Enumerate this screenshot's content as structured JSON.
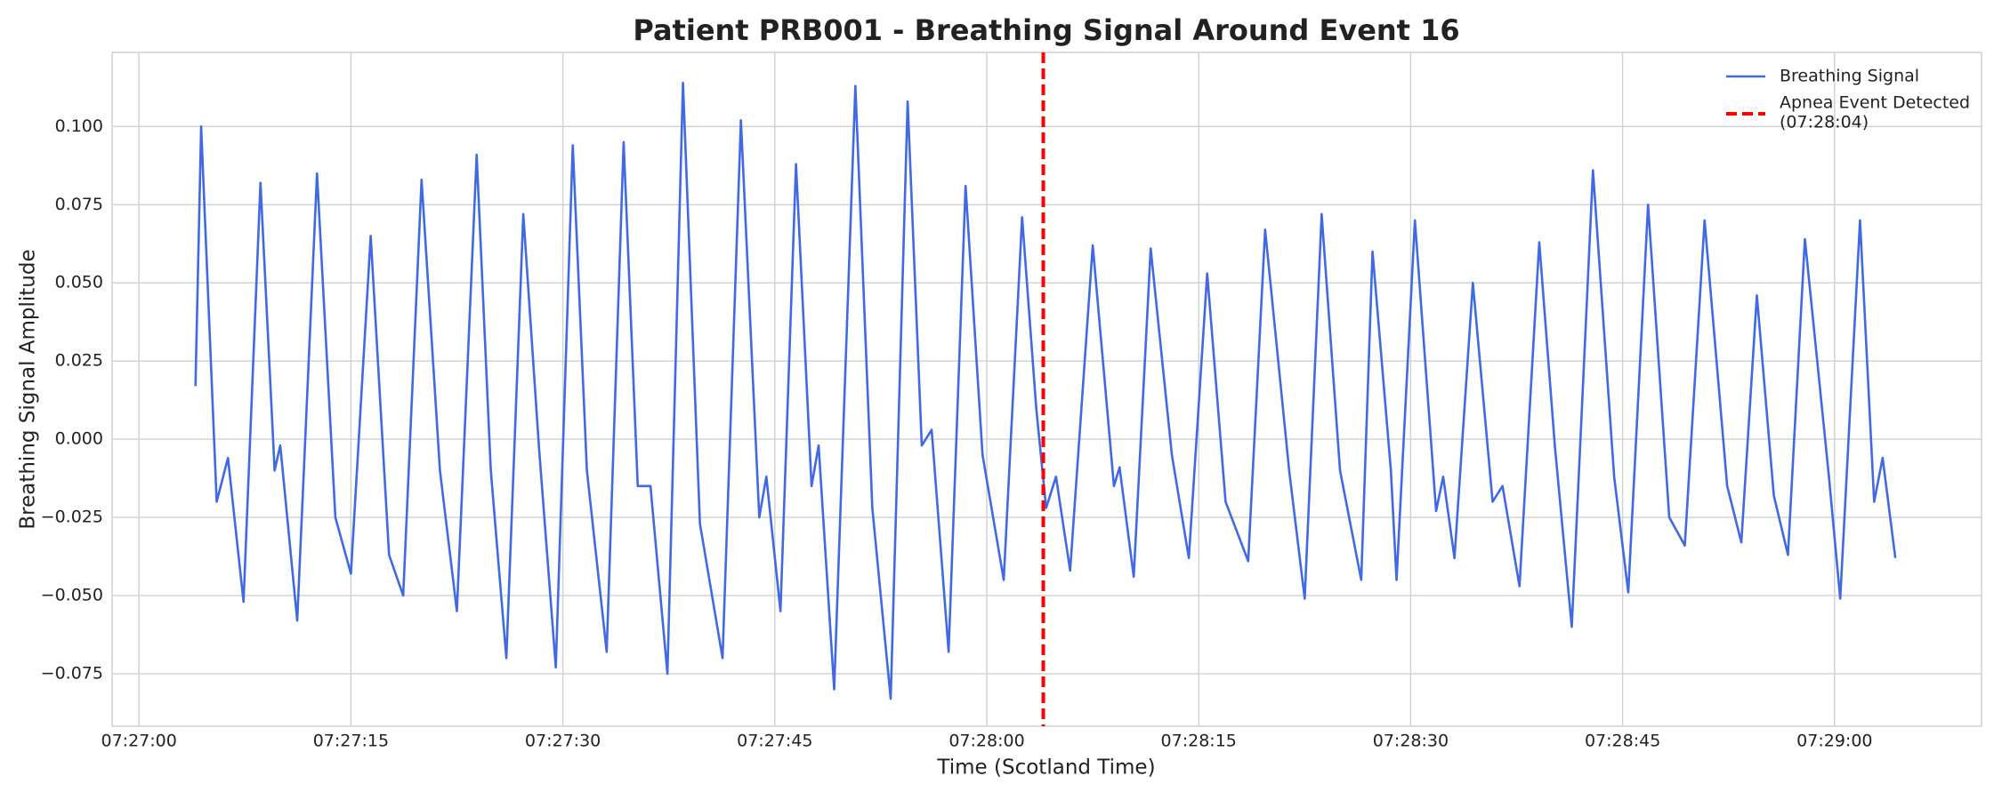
{
  "chart_data": {
    "type": "line",
    "title": "Patient PRB001 - Breathing Signal Around Event 16",
    "x_label": "Time (Scotland Time)",
    "y_label": "Breathing Signal Amplitude",
    "x": [
      4.0,
      4.4,
      5.5,
      6.3,
      7.4,
      8.6,
      9.6,
      10.0,
      11.2,
      12.6,
      13.9,
      15.0,
      16.4,
      17.7,
      18.7,
      20.0,
      21.3,
      22.5,
      23.9,
      24.9,
      26.0,
      27.2,
      28.3,
      29.5,
      30.7,
      31.7,
      33.1,
      34.3,
      35.3,
      36.2,
      37.4,
      38.5,
      39.7,
      41.3,
      42.6,
      43.9,
      44.4,
      45.4,
      46.5,
      47.6,
      48.1,
      49.2,
      50.7,
      51.9,
      53.2,
      54.4,
      55.4,
      56.1,
      57.3,
      58.5,
      59.7,
      61.2,
      62.5,
      63.5,
      64.2,
      64.9,
      65.9,
      67.5,
      69.0,
      69.4,
      70.4,
      71.6,
      73.1,
      74.3,
      75.6,
      76.9,
      78.5,
      79.7,
      81.4,
      82.5,
      83.7,
      85.0,
      86.5,
      87.3,
      88.6,
      89.0,
      90.3,
      91.8,
      92.3,
      93.1,
      94.4,
      95.8,
      96.5,
      97.7,
      99.1,
      100.2,
      101.4,
      102.9,
      104.4,
      105.4,
      106.8,
      108.3,
      109.4,
      110.8,
      112.4,
      113.4,
      114.5,
      115.7,
      116.7,
      117.9,
      119.6,
      120.4,
      121.8,
      122.8,
      123.4,
      124.3
    ],
    "series": [
      {
        "name": "Breathing Signal",
        "color": "#4169e1",
        "values": [
          0.017,
          0.1,
          -0.02,
          -0.006,
          -0.052,
          0.082,
          -0.01,
          -0.002,
          -0.058,
          0.085,
          -0.025,
          -0.043,
          0.065,
          -0.037,
          -0.05,
          0.083,
          -0.01,
          -0.055,
          0.091,
          -0.01,
          -0.07,
          0.072,
          -0.002,
          -0.073,
          0.094,
          -0.01,
          -0.068,
          0.095,
          -0.015,
          -0.015,
          -0.075,
          0.114,
          -0.027,
          -0.07,
          0.102,
          -0.025,
          -0.012,
          -0.055,
          0.088,
          -0.015,
          -0.002,
          -0.08,
          0.113,
          -0.022,
          -0.083,
          0.108,
          -0.002,
          0.003,
          -0.068,
          0.081,
          -0.005,
          -0.045,
          0.071,
          0.01,
          -0.022,
          -0.012,
          -0.042,
          0.062,
          -0.015,
          -0.009,
          -0.044,
          0.061,
          -0.005,
          -0.038,
          0.053,
          -0.02,
          -0.039,
          0.067,
          -0.01,
          -0.051,
          0.072,
          -0.01,
          -0.045,
          0.06,
          -0.01,
          -0.045,
          0.07,
          -0.023,
          -0.012,
          -0.038,
          0.05,
          -0.02,
          -0.015,
          -0.047,
          0.063,
          -0.002,
          -0.06,
          0.086,
          -0.012,
          -0.049,
          0.075,
          -0.025,
          -0.034,
          0.07,
          -0.015,
          -0.033,
          0.046,
          -0.018,
          -0.037,
          0.064,
          -0.012,
          -0.051,
          0.07,
          -0.02,
          -0.006,
          -0.038
        ]
      }
    ],
    "event": {
      "x": 64,
      "color": "#ff0000",
      "label": [
        "Apnea Event Detected",
        "(07:28:04)"
      ]
    },
    "xlim": [
      -1.9,
      130.4
    ],
    "ylim": [
      -0.0918,
      0.1237
    ],
    "xticks": [
      {
        "value": 0,
        "label": "07:27:00"
      },
      {
        "value": 15,
        "label": "07:27:15"
      },
      {
        "value": 30,
        "label": "07:27:30"
      },
      {
        "value": 45,
        "label": "07:27:45"
      },
      {
        "value": 60,
        "label": "07:28:00"
      },
      {
        "value": 75,
        "label": "07:28:15"
      },
      {
        "value": 90,
        "label": "07:28:30"
      },
      {
        "value": 105,
        "label": "07:28:45"
      },
      {
        "value": 120,
        "label": "07:29:00"
      }
    ],
    "yticks": [
      {
        "value": -0.075,
        "label": "−0.075"
      },
      {
        "value": -0.05,
        "label": "−0.050"
      },
      {
        "value": -0.025,
        "label": "−0.025"
      },
      {
        "value": 0,
        "label": "0.000"
      },
      {
        "value": 0.025,
        "label": "0.025"
      },
      {
        "value": 0.05,
        "label": "0.050"
      },
      {
        "value": 0.075,
        "label": "0.075"
      },
      {
        "value": 0.1,
        "label": "0.100"
      }
    ],
    "grid": true,
    "legend": "upper right"
  }
}
